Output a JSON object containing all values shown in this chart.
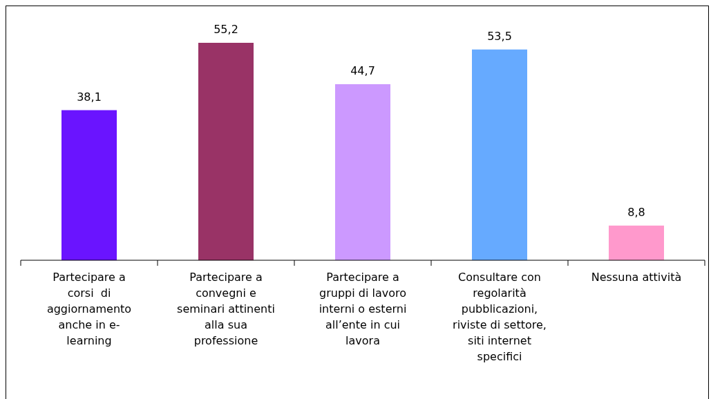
{
  "chart_data": {
    "type": "bar",
    "categories": [
      "Partecipare a\ncorsi  di\naggiornamento\nanche in e-\nlearning",
      "Partecipare a\nconvegni e\nseminari attinenti\nalla sua\nprofessione",
      "Partecipare a\ngruppi di lavoro\ninterni o esterni\nall’ente in cui\nlavora",
      "Consultare con\nregolarità\npubblicazioni,\nriviste di settore,\nsiti internet\nspecifici",
      "Nessuna attività"
    ],
    "values": [
      38.1,
      55.2,
      44.7,
      53.5,
      8.8
    ],
    "colors": [
      "#6a14ff",
      "#993366",
      "#cc99ff",
      "#66aaff",
      "#ff99cc"
    ],
    "value_labels": [
      "38,1",
      "55,2",
      "44,7",
      "53,5",
      "8,8"
    ]
  }
}
